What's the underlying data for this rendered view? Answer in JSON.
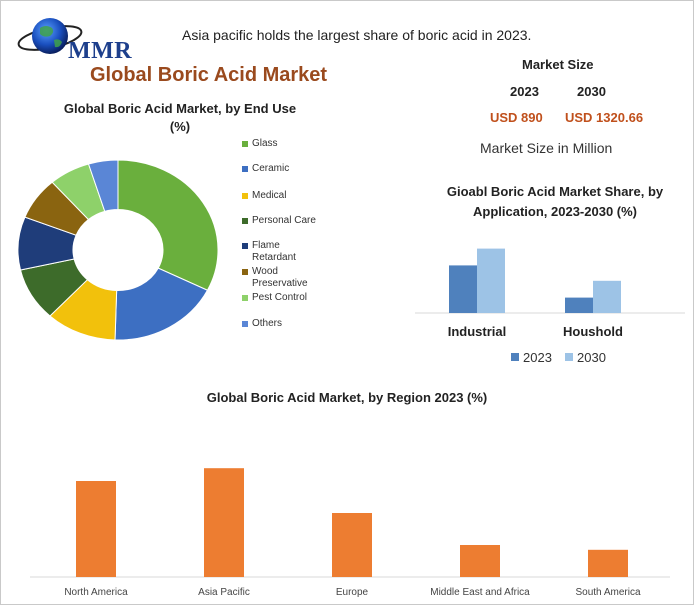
{
  "logo": {
    "text": "MMR"
  },
  "headline": "Asia pacific holds the largest share of boric acid in 2023.",
  "main_title": "Global Boric Acid Market",
  "market_size": {
    "title": "Market Size",
    "year_a": "2023",
    "year_b": "2030",
    "value_a": "USD 890",
    "value_b": "USD 1320.66",
    "unit_note": "Market Size in Million"
  },
  "colors": {
    "title_brown": "#9a4a1e",
    "value_orange": "#c0501c",
    "bar_orange": "#ed7d31",
    "bar_blue_dark": "#4f81bd",
    "bar_blue_light": "#9dc3e6"
  },
  "chart_data": [
    {
      "type": "pie",
      "variant": "donut",
      "title": "Global Boric Acid Market, by End Use  (%)",
      "categories": [
        "Glass",
        "Ceramic",
        "Medical",
        "Personal Care",
        "Flame Retardant",
        "Wood Preservative",
        "Pest Control",
        "Others"
      ],
      "values": [
        34,
        19,
        12,
        10,
        10,
        8,
        7,
        5
      ],
      "colors": [
        "#6aaf3d",
        "#3d6fc2",
        "#f2c10c",
        "#3d6b2a",
        "#1f3d7a",
        "#8a6410",
        "#8ed16a",
        "#5a86d6"
      ],
      "legend": "right"
    },
    {
      "type": "bar",
      "title": "Gioabl Boric Acid Market Share, by Application, 2023-2030 (%)",
      "categories": [
        "Industrial",
        "Houshold"
      ],
      "series": [
        {
          "name": "2023",
          "values": [
            68,
            22
          ],
          "color": "#4f81bd"
        },
        {
          "name": "2030",
          "values": [
            92,
            46
          ],
          "color": "#9dc3e6"
        }
      ],
      "ylim": [
        0,
        100
      ],
      "grid": false,
      "legend": "bottom"
    },
    {
      "type": "bar",
      "title": "Global Boric Acid Market, by Region 2023 (%)",
      "categories": [
        "North America",
        "Asia Pacific",
        "Europe",
        "Middle East and Africa",
        "South America"
      ],
      "values": [
        30,
        34,
        20,
        10,
        8.5
      ],
      "ylim": [
        0,
        40
      ],
      "grid": false,
      "color": "#ed7d31"
    }
  ]
}
